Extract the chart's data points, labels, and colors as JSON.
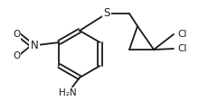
{
  "background": "#ffffff",
  "line_color": "#1a1a1a",
  "line_width": 1.3,
  "font_size": 7.5,
  "figsize": [
    2.2,
    1.22
  ],
  "dpi": 100,
  "xlim": [
    0,
    220
  ],
  "ylim": [
    0,
    122
  ]
}
